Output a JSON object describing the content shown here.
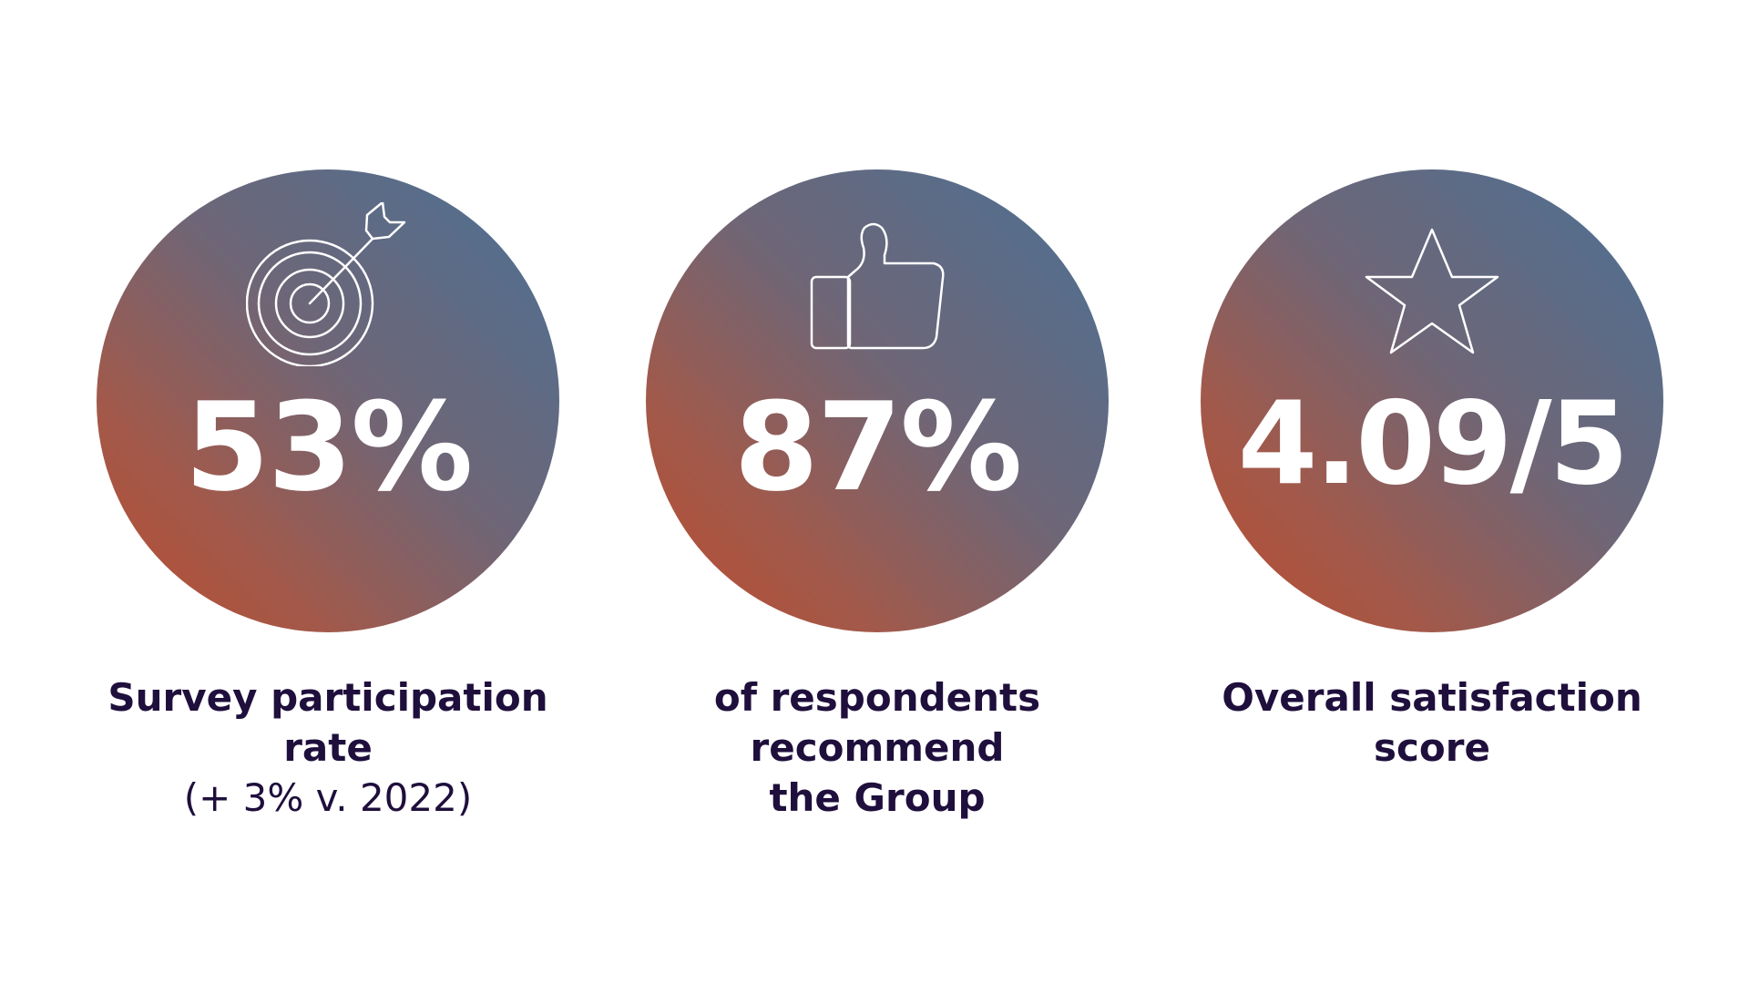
{
  "stats": [
    {
      "icon": "target-arrow-icon",
      "value": "53%",
      "caption_bold": [
        "Survey participation",
        "rate"
      ],
      "caption_light": "(+ 3% v. 2022)"
    },
    {
      "icon": "thumbs-up-icon",
      "value": "87%",
      "caption_bold": [
        "of respondents",
        "recommend",
        "the Group"
      ],
      "caption_light": ""
    },
    {
      "icon": "star-icon",
      "value": "4.09/5",
      "caption_bold": [
        "Overall satisfaction",
        "score"
      ],
      "caption_light": ""
    }
  ],
  "colors": {
    "gradient_top_right": "#4b7195",
    "gradient_bottom_left": "#bb4b30",
    "value_text": "#ffffff",
    "caption_text": "#1f0f3c",
    "background": "#ffffff"
  }
}
